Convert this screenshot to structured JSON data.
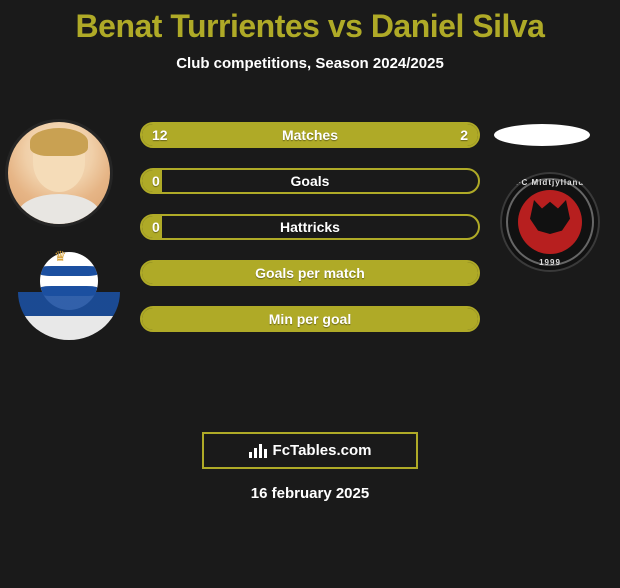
{
  "title": "Benat Turrientes vs Daniel Silva",
  "subtitle": "Club competitions, Season 2024/2025",
  "colors": {
    "accent": "#afaa27",
    "bg": "#1a1a1a",
    "text": "#ffffff",
    "club_left_primary": "#1b4fa0",
    "club_right_bg": "#111111",
    "club_right_inner": "#b71f1f"
  },
  "player_left": {
    "name": "Benat Turrientes",
    "club_name": "Real Sociedad"
  },
  "player_right": {
    "name": "Daniel Silva",
    "club_name": "FC Midtjylland",
    "club_founded": "1999"
  },
  "stats": [
    {
      "label": "Matches",
      "left_val": "12",
      "right_val": "2",
      "left_pct": 86,
      "right_pct": 14
    },
    {
      "label": "Goals",
      "left_val": "0",
      "right_val": "",
      "left_pct": 6,
      "right_pct": 0
    },
    {
      "label": "Hattricks",
      "left_val": "0",
      "right_val": "",
      "left_pct": 6,
      "right_pct": 0
    },
    {
      "label": "Goals per match",
      "left_val": "",
      "right_val": "",
      "left_pct": 100,
      "right_pct": 0
    },
    {
      "label": "Min per goal",
      "left_val": "",
      "right_val": "",
      "left_pct": 100,
      "right_pct": 0
    }
  ],
  "footer_brand": "FcTables.com",
  "date": "16 february 2025"
}
